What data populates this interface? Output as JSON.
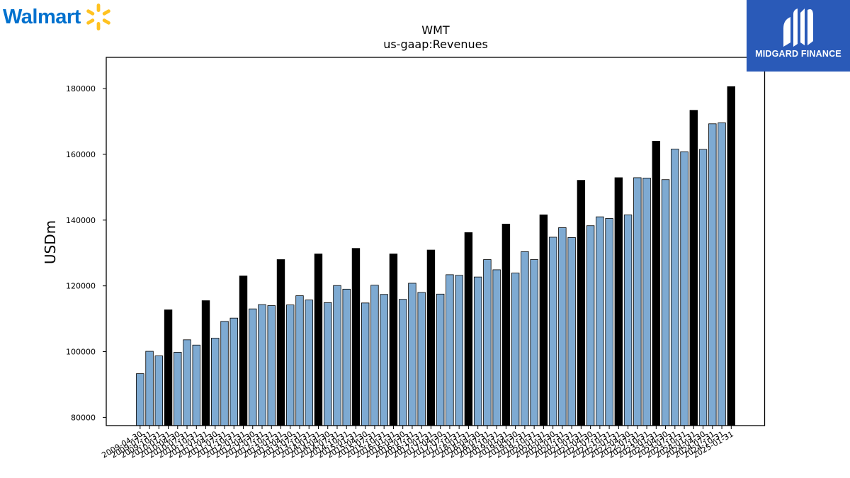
{
  "branding": {
    "company_logo_text": "Walmart",
    "company_logo_color": "#0071ce",
    "spark_color": "#ffc220",
    "publisher_logo_text": "MIDGARD FINANCE",
    "publisher_bg_color": "#2a5ab8"
  },
  "chart_data": {
    "type": "bar",
    "title": "WMT",
    "subtitle": "us-gaap:Revenues",
    "xlabel": "",
    "ylabel": "USDm",
    "ylim": [
      77500,
      189500
    ],
    "yticks": [
      80000,
      100000,
      120000,
      140000,
      160000,
      180000
    ],
    "grid": false,
    "legend": "none",
    "colors": {
      "quarter": "#7eaad2",
      "fiscal_year": "#000000",
      "edge": "#000000"
    },
    "categories": [
      "2009-04-30",
      "2009-07-31",
      "2009-10-31",
      "2010-01-31",
      "2010-04-30",
      "2010-07-31",
      "2010-10-31",
      "2011-01-31",
      "2011-04-30",
      "2011-07-31",
      "2011-10-31",
      "2012-01-31",
      "2012-04-30",
      "2012-07-31",
      "2012-10-31",
      "2013-01-31",
      "2013-04-30",
      "2013-07-31",
      "2013-10-31",
      "2014-01-31",
      "2014-04-30",
      "2014-07-31",
      "2014-10-31",
      "2015-01-31",
      "2015-04-30",
      "2015-07-31",
      "2015-10-31",
      "2016-01-31",
      "2016-04-30",
      "2016-07-31",
      "2016-10-31",
      "2017-01-31",
      "2017-04-30",
      "2017-07-31",
      "2017-10-31",
      "2018-01-31",
      "2018-04-30",
      "2018-07-31",
      "2018-10-31",
      "2019-01-31",
      "2019-04-30",
      "2019-07-31",
      "2019-10-31",
      "2020-01-31",
      "2020-04-30",
      "2020-07-31",
      "2020-10-31",
      "2021-01-31",
      "2021-04-30",
      "2021-07-31",
      "2021-10-31",
      "2022-01-31",
      "2022-04-30",
      "2022-07-31",
      "2022-10-31",
      "2023-01-31",
      "2023-04-30",
      "2023-07-31",
      "2023-10-31",
      "2024-01-31",
      "2024-04-30",
      "2024-07-31",
      "2024-10-31",
      "2025-01-31"
    ],
    "values": [
      93300,
      100100,
      98700,
      112700,
      99800,
      103600,
      102000,
      115500,
      104100,
      109200,
      110200,
      123000,
      113000,
      114300,
      114000,
      128000,
      114200,
      117000,
      115700,
      129700,
      114900,
      120100,
      119000,
      131400,
      114800,
      120200,
      117400,
      129700,
      115900,
      120800,
      118000,
      130900,
      117500,
      123400,
      123200,
      136200,
      122700,
      128000,
      124900,
      138800,
      123900,
      130400,
      128000,
      141600,
      134800,
      137700,
      134700,
      152100,
      138300,
      141000,
      140500,
      152900,
      141600,
      152900,
      152800,
      164000,
      152300,
      161600,
      160800,
      173400,
      161500,
      169300,
      169600,
      180600
    ],
    "fiscal_year_end_flags": [
      false,
      false,
      false,
      true,
      false,
      false,
      false,
      true,
      false,
      false,
      false,
      true,
      false,
      false,
      false,
      true,
      false,
      false,
      false,
      true,
      false,
      false,
      false,
      true,
      false,
      false,
      false,
      true,
      false,
      false,
      false,
      true,
      false,
      false,
      false,
      true,
      false,
      false,
      false,
      true,
      false,
      false,
      false,
      true,
      false,
      false,
      false,
      true,
      false,
      false,
      false,
      true,
      false,
      false,
      false,
      true,
      false,
      false,
      false,
      true,
      false,
      false,
      false,
      true
    ]
  }
}
